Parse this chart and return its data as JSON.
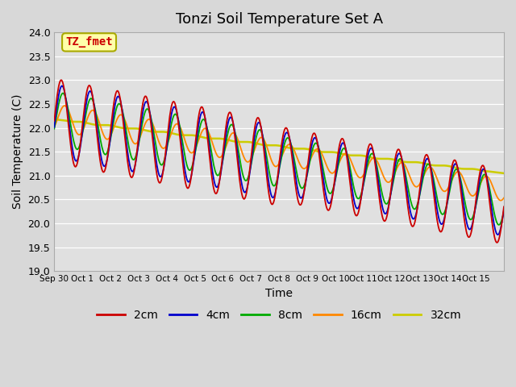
{
  "title": "Tonzi Soil Temperature Set A",
  "xlabel": "Time",
  "ylabel": "Soil Temperature (C)",
  "ylim": [
    19.0,
    24.0
  ],
  "yticks": [
    19.0,
    19.5,
    20.0,
    20.5,
    21.0,
    21.5,
    22.0,
    22.5,
    23.0,
    23.5,
    24.0
  ],
  "xtick_positions": [
    0,
    1,
    2,
    3,
    4,
    5,
    6,
    7,
    8,
    9,
    10,
    11,
    12,
    13,
    14,
    15,
    16
  ],
  "xtick_labels": [
    "Sep 30",
    "Oct 1",
    "Oct 2",
    "Oct 3",
    "Oct 4",
    "Oct 5",
    "Oct 6",
    "Oct 7",
    "Oct 8",
    "Oct 9",
    "Oct 10",
    "Oct 11",
    "Oct 12",
    "Oct 13",
    "Oct 14",
    "Oct 15",
    ""
  ],
  "colors": {
    "2cm": "#cc0000",
    "4cm": "#0000cc",
    "8cm": "#00aa00",
    "16cm": "#ff8800",
    "32cm": "#cccc00"
  },
  "legend_labels": [
    "2cm",
    "4cm",
    "8cm",
    "16cm",
    "32cm"
  ],
  "annotation_text": "TZ_fmet",
  "annotation_color": "#cc0000",
  "annotation_bg": "#ffffaa",
  "background_color": "#e0e0e0",
  "grid_color": "#ffffff",
  "title_fontsize": 13,
  "n_days": 16,
  "n_per_day": 48
}
